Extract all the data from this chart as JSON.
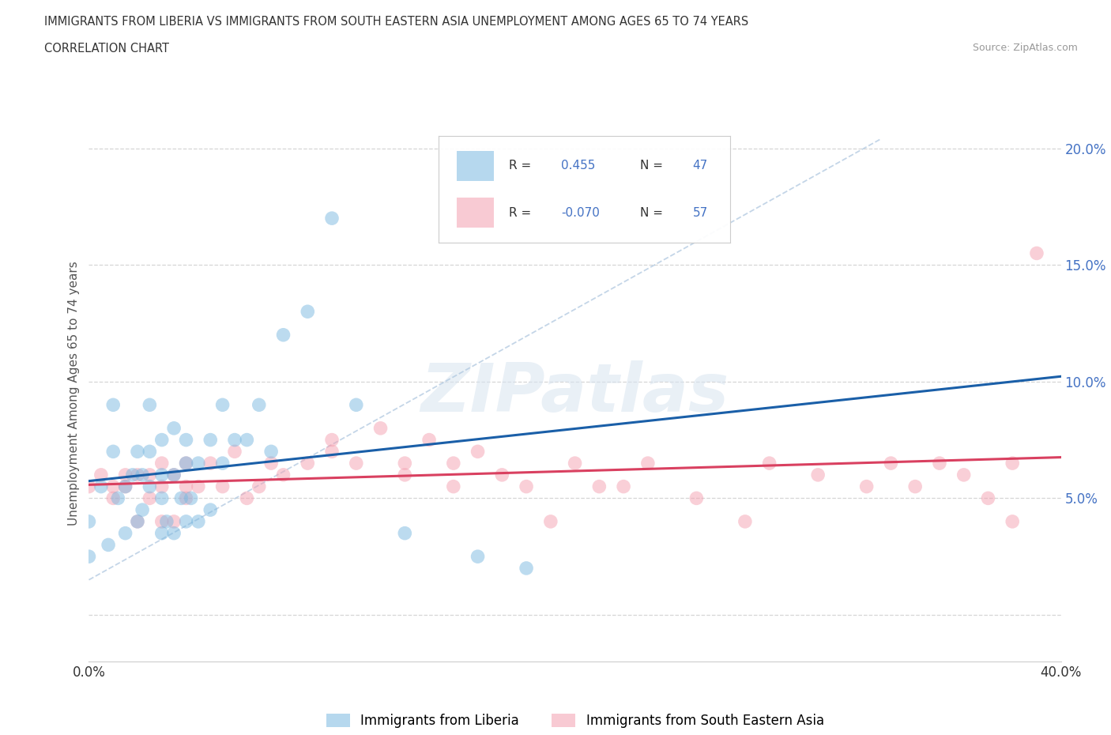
{
  "title_line1": "IMMIGRANTS FROM LIBERIA VS IMMIGRANTS FROM SOUTH EASTERN ASIA UNEMPLOYMENT AMONG AGES 65 TO 74 YEARS",
  "title_line2": "CORRELATION CHART",
  "source": "Source: ZipAtlas.com",
  "ylabel": "Unemployment Among Ages 65 to 74 years",
  "xlim": [
    0.0,
    0.4
  ],
  "ylim": [
    -0.02,
    0.21
  ],
  "ylim_display": [
    0.0,
    0.2
  ],
  "xticks": [
    0.0,
    0.05,
    0.1,
    0.15,
    0.2,
    0.25,
    0.3,
    0.35,
    0.4
  ],
  "yticks": [
    0.0,
    0.05,
    0.1,
    0.15,
    0.2
  ],
  "liberia_R": 0.455,
  "liberia_N": 47,
  "sea_R": -0.07,
  "sea_N": 57,
  "liberia_dot_color": "#7ab8e0",
  "sea_dot_color": "#f4a0b0",
  "trend_liberia_color": "#1a5fa8",
  "trend_sea_color": "#d94060",
  "diag_color": "#b0c8e0",
  "legend_label_liberia": "Immigrants from Liberia",
  "legend_label_sea": "Immigrants from South Eastern Asia",
  "liberia_x": [
    0.0,
    0.0,
    0.005,
    0.008,
    0.01,
    0.01,
    0.012,
    0.015,
    0.015,
    0.018,
    0.02,
    0.02,
    0.022,
    0.022,
    0.025,
    0.025,
    0.025,
    0.03,
    0.03,
    0.03,
    0.03,
    0.032,
    0.035,
    0.035,
    0.035,
    0.038,
    0.04,
    0.04,
    0.04,
    0.042,
    0.045,
    0.045,
    0.05,
    0.05,
    0.055,
    0.055,
    0.06,
    0.065,
    0.07,
    0.075,
    0.08,
    0.09,
    0.1,
    0.11,
    0.13,
    0.16,
    0.18
  ],
  "liberia_y": [
    0.04,
    0.025,
    0.055,
    0.03,
    0.07,
    0.09,
    0.05,
    0.055,
    0.035,
    0.06,
    0.04,
    0.07,
    0.045,
    0.06,
    0.055,
    0.07,
    0.09,
    0.035,
    0.05,
    0.06,
    0.075,
    0.04,
    0.035,
    0.06,
    0.08,
    0.05,
    0.04,
    0.065,
    0.075,
    0.05,
    0.04,
    0.065,
    0.045,
    0.075,
    0.065,
    0.09,
    0.075,
    0.075,
    0.09,
    0.07,
    0.12,
    0.13,
    0.17,
    0.09,
    0.035,
    0.025,
    0.02
  ],
  "sea_x": [
    0.0,
    0.005,
    0.01,
    0.01,
    0.015,
    0.015,
    0.02,
    0.02,
    0.025,
    0.025,
    0.03,
    0.03,
    0.03,
    0.035,
    0.035,
    0.04,
    0.04,
    0.04,
    0.045,
    0.05,
    0.055,
    0.06,
    0.065,
    0.07,
    0.075,
    0.08,
    0.09,
    0.1,
    0.1,
    0.11,
    0.12,
    0.13,
    0.13,
    0.14,
    0.15,
    0.15,
    0.16,
    0.17,
    0.18,
    0.19,
    0.2,
    0.21,
    0.22,
    0.23,
    0.25,
    0.27,
    0.28,
    0.3,
    0.32,
    0.33,
    0.34,
    0.35,
    0.36,
    0.37,
    0.38,
    0.38,
    0.39
  ],
  "sea_y": [
    0.055,
    0.06,
    0.05,
    0.055,
    0.055,
    0.06,
    0.04,
    0.06,
    0.05,
    0.06,
    0.04,
    0.055,
    0.065,
    0.04,
    0.06,
    0.05,
    0.055,
    0.065,
    0.055,
    0.065,
    0.055,
    0.07,
    0.05,
    0.055,
    0.065,
    0.06,
    0.065,
    0.07,
    0.075,
    0.065,
    0.08,
    0.06,
    0.065,
    0.075,
    0.055,
    0.065,
    0.07,
    0.06,
    0.055,
    0.04,
    0.065,
    0.055,
    0.055,
    0.065,
    0.05,
    0.04,
    0.065,
    0.06,
    0.055,
    0.065,
    0.055,
    0.065,
    0.06,
    0.05,
    0.04,
    0.065,
    0.155
  ]
}
